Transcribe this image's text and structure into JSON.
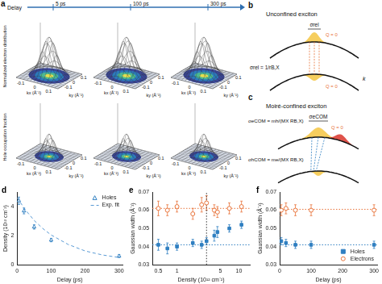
{
  "figure": {
    "a": {
      "letter": "a",
      "delay_label": "Delay",
      "delays": [
        "5 ps",
        "100 ps",
        "300 ps"
      ],
      "rows": [
        "Normalized electron distribution",
        "Hole occupation fraction"
      ],
      "x_label": "kx (Å⁻¹)",
      "y_label": "ky (Å⁻¹)",
      "klim": [
        -0.15,
        0.15
      ],
      "kticks": [
        -0.1,
        0,
        0.1
      ]
    },
    "b": {
      "letter": "b",
      "title": "Unconfined exciton",
      "width_label": "σrel",
      "formula": "σrel = 1/rB,X",
      "q_labels": [
        "Q = 0",
        "Q = 0"
      ],
      "k_label": "k"
    },
    "c": {
      "letter": "c",
      "title": "Moiré-confined exciton",
      "width_label": "σeCOM",
      "q_label": "Q = 0",
      "formulas": [
        "σhCOM = me/(MX RB,X)",
        "σeCOM = mh/(MX RB,X)"
      ]
    }
  },
  "chart_data": [
    {
      "letter": "d",
      "type": "scatter",
      "x_label": "Delay (ps)",
      "y_label": "Density (10¹² cm⁻²)",
      "xlim": [
        0,
        310
      ],
      "xticks": [
        0,
        100,
        200,
        300
      ],
      "ylim": [
        0,
        5
      ],
      "yticks": [
        0,
        2,
        4
      ],
      "grid": false,
      "legend": "top-right",
      "series": [
        {
          "name": "Holes",
          "color": "#2f7fc1",
          "marker": "triangle_open",
          "x": [
            5,
            20,
            50,
            100,
            300
          ],
          "values": [
            4.4,
            3.7,
            2.6,
            1.7,
            0.6
          ],
          "errors": [
            0.25,
            0.2,
            0.15,
            0.12,
            0.1
          ]
        },
        {
          "name": "Exp. fit",
          "type": "line",
          "color": "#5b9bd5",
          "line_style": "dashed",
          "marker": "none",
          "x": [
            0,
            25,
            50,
            75,
            100,
            150,
            200,
            250,
            300
          ],
          "values": [
            4.6,
            3.75,
            3.05,
            2.5,
            2.05,
            1.4,
            0.95,
            0.68,
            0.5
          ]
        }
      ]
    },
    {
      "letter": "e",
      "type": "scatter",
      "x_label": "Density (10¹² cm⁻²)",
      "y_label": "Gaussian width (Å⁻¹)",
      "log": "x",
      "xlim": [
        0.4,
        15
      ],
      "xticks": [
        0.5,
        1,
        5,
        10
      ],
      "ylim": [
        0.03,
        0.07
      ],
      "yticks": [
        0.03,
        0.04,
        0.05,
        0.06,
        0.07
      ],
      "grid": false,
      "series": [
        {
          "type": "line",
          "color": "#e8743b",
          "line_style": "dotted",
          "marker": "none",
          "x": [
            0.4,
            15
          ],
          "values": [
            0.061,
            0.061
          ]
        },
        {
          "type": "line",
          "color": "#2f7fc1",
          "line_style": "dotted",
          "marker": "none",
          "x": [
            0.4,
            15
          ],
          "values": [
            0.041,
            0.041
          ]
        },
        {
          "type": "line",
          "color": "#333333",
          "line_style": "dotted",
          "marker": "none",
          "x": [
            3,
            3
          ],
          "values": [
            0.03,
            0.07
          ]
        },
        {
          "name": "Holes",
          "color": "#2f7fc1",
          "marker": "square",
          "x": [
            0.5,
            0.7,
            1.0,
            1.8,
            2.5,
            3.0,
            4.0,
            4.5,
            7.0,
            11.0
          ],
          "values": [
            0.041,
            0.039,
            0.04,
            0.042,
            0.041,
            0.043,
            0.046,
            0.048,
            0.05,
            0.052
          ],
          "errors": [
            0.003,
            0.003,
            0.002,
            0.002,
            0.002,
            0.002,
            0.003,
            0.003,
            0.002,
            0.002
          ]
        },
        {
          "name": "Electrons",
          "color": "#e8743b",
          "marker": "circle_open",
          "x": [
            0.5,
            0.7,
            1.0,
            1.8,
            2.5,
            3.0,
            4.0,
            4.5,
            7.0,
            11.0
          ],
          "values": [
            0.061,
            0.06,
            0.062,
            0.058,
            0.063,
            0.064,
            0.06,
            0.059,
            0.061,
            0.062
          ],
          "errors": [
            0.004,
            0.003,
            0.003,
            0.003,
            0.004,
            0.004,
            0.003,
            0.003,
            0.003,
            0.003
          ]
        }
      ]
    },
    {
      "letter": "f",
      "type": "scatter",
      "x_label": "Delay (ps)",
      "y_label": "Gaussian width (Å⁻¹)",
      "xlim": [
        0,
        310
      ],
      "xticks": [
        0,
        100,
        200,
        300
      ],
      "ylim": [
        0.03,
        0.07
      ],
      "yticks": [
        0.03,
        0.04,
        0.05,
        0.06,
        0.07
      ],
      "grid": false,
      "legend": "bottom-right",
      "series": [
        {
          "type": "line",
          "color": "#e8743b",
          "line_style": "dotted",
          "marker": "none",
          "x": [
            0,
            310
          ],
          "values": [
            0.0605,
            0.0605
          ]
        },
        {
          "type": "line",
          "color": "#2f7fc1",
          "line_style": "dotted",
          "marker": "none",
          "x": [
            0,
            310
          ],
          "values": [
            0.041,
            0.041
          ]
        },
        {
          "name": "Holes",
          "color": "#2f7fc1",
          "marker": "square",
          "x": [
            5,
            20,
            50,
            100,
            300
          ],
          "values": [
            0.043,
            0.042,
            0.041,
            0.041,
            0.041
          ],
          "errors": [
            0.002,
            0.002,
            0.002,
            0.002,
            0.002
          ]
        },
        {
          "name": "Electrons",
          "color": "#e8743b",
          "marker": "circle_open",
          "x": [
            5,
            20,
            50,
            100,
            300
          ],
          "values": [
            0.06,
            0.061,
            0.06,
            0.06,
            0.06
          ],
          "errors": [
            0.003,
            0.003,
            0.003,
            0.003,
            0.003
          ]
        }
      ]
    }
  ]
}
